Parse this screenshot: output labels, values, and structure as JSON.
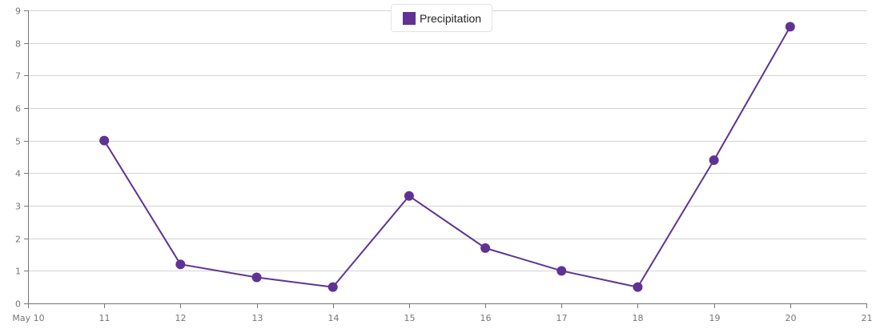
{
  "chart_data": {
    "type": "line",
    "title": "",
    "xlabel": "",
    "ylabel": "",
    "x": [
      "11",
      "12",
      "13",
      "14",
      "15",
      "16",
      "17",
      "18",
      "19",
      "20"
    ],
    "x_tick_labels": [
      "May 10",
      "11",
      "12",
      "13",
      "14",
      "15",
      "16",
      "17",
      "18",
      "19",
      "20",
      "21"
    ],
    "y_tick_labels": [
      "0",
      "1",
      "2",
      "3",
      "4",
      "5",
      "6",
      "7",
      "8",
      "9"
    ],
    "ylim": [
      0,
      9
    ],
    "xlim": [
      "May 10",
      "May 21"
    ],
    "grid": {
      "horizontal": true,
      "vertical": false
    },
    "legend_position": "top-center",
    "series": [
      {
        "name": "Precipitation",
        "color": "#5f3394",
        "marker": "circle",
        "values": [
          5.0,
          1.2,
          0.8,
          0.5,
          3.3,
          1.7,
          1.0,
          0.5,
          4.4,
          8.5
        ]
      }
    ]
  },
  "legend": {
    "items": [
      {
        "label": "Precipitation",
        "color": "#5f3394"
      }
    ]
  },
  "colors": {
    "series": "#5f3394",
    "grid": "#d3d3d3",
    "axis": "#767676",
    "tick_text": "#767676"
  }
}
